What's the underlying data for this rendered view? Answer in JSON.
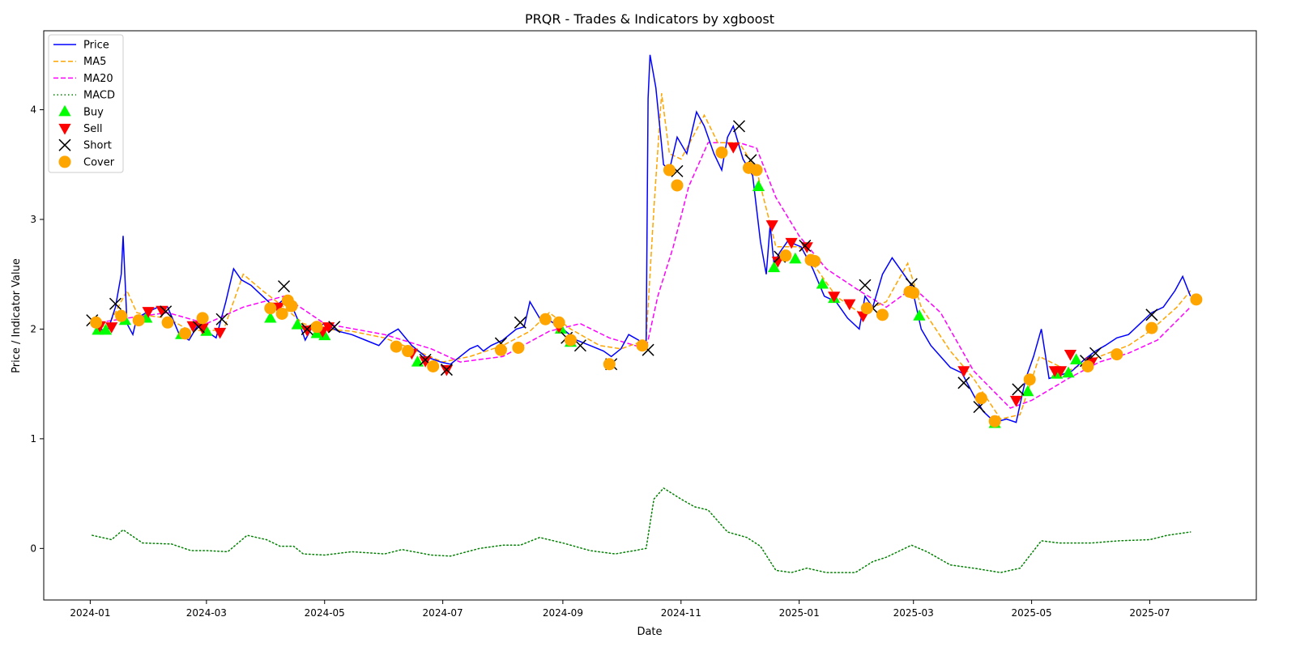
{
  "chart_data": {
    "type": "line",
    "title": "PRQR - Trades & Indicators by xgboost",
    "xlabel": "Date",
    "ylabel": "Price / Indicator Value",
    "xlim": [
      "2023-12-08",
      "2025-08-25"
    ],
    "ylim": [
      -0.47,
      4.72
    ],
    "grid": false,
    "legend_position": "top-left",
    "x_ticks": [
      "2024-01",
      "2024-03",
      "2024-05",
      "2024-07",
      "2024-09",
      "2024-11",
      "2025-01",
      "2025-03",
      "2025-05",
      "2025-07"
    ],
    "y_ticks": [
      0,
      1,
      2,
      3,
      4
    ],
    "colors": {
      "price": "#0000ff",
      "ma5": "#ffa500",
      "ma20": "#ff00ff",
      "macd": "#008000",
      "buy": "#00ff00",
      "sell": "#ff0000",
      "short": "#000000",
      "cover": "#ffa500"
    },
    "series": [
      {
        "name": "Price",
        "style": "solid",
        "color": "#0000ff",
        "x": [
          "2024-01-02",
          "2024-01-06",
          "2024-01-10",
          "2024-01-14",
          "2024-01-17",
          "2024-01-18",
          "2024-01-20",
          "2024-01-23",
          "2024-01-25",
          "2024-01-30",
          "2024-02-05",
          "2024-02-10",
          "2024-02-16",
          "2024-02-21",
          "2024-02-26",
          "2024-03-01",
          "2024-03-06",
          "2024-03-11",
          "2024-03-15",
          "2024-03-19",
          "2024-03-24",
          "2024-03-30",
          "2024-04-05",
          "2024-04-12",
          "2024-04-18",
          "2024-04-21",
          "2024-04-24",
          "2024-05-01",
          "2024-05-08",
          "2024-05-15",
          "2024-05-22",
          "2024-05-29",
          "2024-06-03",
          "2024-06-08",
          "2024-06-15",
          "2024-06-22",
          "2024-06-30",
          "2024-07-05",
          "2024-07-10",
          "2024-07-15",
          "2024-07-19",
          "2024-07-22",
          "2024-07-26",
          "2024-08-01",
          "2024-08-08",
          "2024-08-12",
          "2024-08-15",
          "2024-08-20",
          "2024-08-25",
          "2024-09-01",
          "2024-09-08",
          "2024-09-15",
          "2024-09-22",
          "2024-09-26",
          "2024-10-01",
          "2024-10-05",
          "2024-10-10",
          "2024-10-14",
          "2024-10-15",
          "2024-10-16",
          "2024-10-19",
          "2024-10-23",
          "2024-10-26",
          "2024-10-30",
          "2024-11-04",
          "2024-11-09",
          "2024-11-13",
          "2024-11-18",
          "2024-11-22",
          "2024-11-25",
          "2024-11-28",
          "2024-12-03",
          "2024-12-08",
          "2024-12-12",
          "2024-12-15",
          "2024-12-17",
          "2024-12-19",
          "2024-12-22",
          "2024-12-26",
          "2025-01-02",
          "2025-01-08",
          "2025-01-14",
          "2025-01-20",
          "2025-01-26",
          "2025-02-01",
          "2025-02-04",
          "2025-02-08",
          "2025-02-13",
          "2025-02-18",
          "2025-02-22",
          "2025-02-28",
          "2025-03-05",
          "2025-03-10",
          "2025-03-15",
          "2025-03-20",
          "2025-03-26",
          "2025-04-01",
          "2025-04-06",
          "2025-04-12",
          "2025-04-18",
          "2025-04-23",
          "2025-04-28",
          "2025-05-02",
          "2025-05-06",
          "2025-05-10",
          "2025-05-16",
          "2025-05-22",
          "2025-05-28",
          "2025-06-03",
          "2025-06-08",
          "2025-06-14",
          "2025-06-20",
          "2025-06-26",
          "2025-07-02",
          "2025-07-08",
          "2025-07-14",
          "2025-07-18",
          "2025-07-22"
        ],
        "values": [
          2.05,
          2.0,
          1.98,
          2.2,
          2.5,
          2.85,
          2.05,
          1.95,
          2.1,
          2.15,
          2.2,
          2.2,
          1.95,
          1.9,
          2.05,
          1.98,
          1.92,
          2.25,
          2.55,
          2.45,
          2.4,
          2.3,
          2.2,
          2.3,
          2.05,
          1.9,
          2.0,
          2.05,
          1.98,
          1.95,
          1.9,
          1.85,
          1.95,
          2.0,
          1.85,
          1.75,
          1.7,
          1.68,
          1.75,
          1.82,
          1.85,
          1.8,
          1.85,
          1.9,
          2.0,
          2.02,
          2.25,
          2.1,
          2.08,
          2.0,
          1.9,
          1.85,
          1.8,
          1.75,
          1.82,
          1.95,
          1.9,
          1.85,
          4.1,
          4.5,
          4.2,
          3.5,
          3.45,
          3.75,
          3.6,
          3.98,
          3.85,
          3.6,
          3.45,
          3.75,
          3.85,
          3.55,
          3.4,
          2.8,
          2.5,
          2.95,
          2.6,
          2.7,
          2.8,
          2.75,
          2.55,
          2.3,
          2.25,
          2.1,
          2.0,
          2.3,
          2.2,
          2.5,
          2.65,
          2.55,
          2.4,
          2.0,
          1.85,
          1.75,
          1.65,
          1.6,
          1.4,
          1.25,
          1.15,
          1.18,
          1.15,
          1.55,
          1.75,
          2.0,
          1.55,
          1.58,
          1.62,
          1.72,
          1.8,
          1.85,
          1.92,
          1.95,
          2.05,
          2.15,
          2.2,
          2.35,
          2.48,
          2.3
        ]
      },
      {
        "name": "MA5",
        "style": "dashed",
        "color": "#ffa500",
        "x": [
          "2024-01-02",
          "2024-01-10",
          "2024-01-20",
          "2024-01-25",
          "2024-02-01",
          "2024-02-10",
          "2024-02-20",
          "2024-03-01",
          "2024-03-10",
          "2024-03-20",
          "2024-03-30",
          "2024-04-10",
          "2024-04-20",
          "2024-05-01",
          "2024-05-15",
          "2024-06-01",
          "2024-06-15",
          "2024-07-01",
          "2024-07-15",
          "2024-08-01",
          "2024-08-15",
          "2024-08-25",
          "2024-09-05",
          "2024-09-20",
          "2024-10-01",
          "2024-10-14",
          "2024-10-18",
          "2024-10-22",
          "2024-10-26",
          "2024-11-01",
          "2024-11-13",
          "2024-11-20",
          "2024-12-01",
          "2024-12-10",
          "2024-12-20",
          "2025-01-01",
          "2025-01-10",
          "2025-01-20",
          "2025-02-01",
          "2025-02-15",
          "2025-02-26",
          "2025-03-05",
          "2025-03-20",
          "2025-04-01",
          "2025-04-15",
          "2025-04-25",
          "2025-05-05",
          "2025-05-20",
          "2025-06-05",
          "2025-06-20",
          "2025-07-01",
          "2025-07-15",
          "2025-07-22"
        ],
        "values": [
          2.05,
          2.02,
          2.35,
          2.15,
          2.12,
          2.1,
          2.0,
          1.98,
          2.0,
          2.5,
          2.35,
          2.2,
          2.05,
          2.0,
          1.98,
          1.92,
          1.82,
          1.7,
          1.75,
          1.85,
          1.98,
          2.15,
          2.0,
          1.85,
          1.82,
          1.9,
          3.1,
          4.15,
          3.6,
          3.55,
          3.95,
          3.7,
          3.7,
          3.45,
          2.75,
          2.75,
          2.55,
          2.3,
          2.15,
          2.25,
          2.6,
          2.2,
          1.8,
          1.55,
          1.18,
          1.22,
          1.75,
          1.62,
          1.75,
          1.85,
          1.98,
          2.2,
          2.35
        ]
      },
      {
        "name": "MA20",
        "style": "dashed",
        "color": "#ff00ff",
        "x": [
          "2024-01-02",
          "2024-01-20",
          "2024-02-10",
          "2024-03-01",
          "2024-03-20",
          "2024-04-10",
          "2024-05-01",
          "2024-06-01",
          "2024-06-25",
          "2024-07-10",
          "2024-08-01",
          "2024-08-25",
          "2024-09-10",
          "2024-09-25",
          "2024-10-14",
          "2024-10-20",
          "2024-10-28",
          "2024-11-05",
          "2024-11-15",
          "2024-12-01",
          "2024-12-10",
          "2024-12-20",
          "2025-01-01",
          "2025-01-15",
          "2025-02-01",
          "2025-02-15",
          "2025-03-01",
          "2025-03-15",
          "2025-04-01",
          "2025-04-20",
          "2025-05-01",
          "2025-05-20",
          "2025-06-05",
          "2025-06-20",
          "2025-07-05",
          "2025-07-22"
        ],
        "values": [
          2.05,
          2.1,
          2.15,
          2.05,
          2.2,
          2.3,
          2.05,
          1.95,
          1.82,
          1.7,
          1.75,
          1.98,
          2.05,
          1.92,
          1.82,
          2.3,
          2.75,
          3.3,
          3.7,
          3.7,
          3.65,
          3.2,
          2.85,
          2.55,
          2.35,
          2.2,
          2.38,
          2.15,
          1.62,
          1.28,
          1.35,
          1.55,
          1.7,
          1.78,
          1.9,
          2.2
        ]
      },
      {
        "name": "MACD",
        "style": "dotted",
        "color": "#008000",
        "x": [
          "2024-01-02",
          "2024-01-12",
          "2024-01-18",
          "2024-01-28",
          "2024-02-12",
          "2024-02-22",
          "2024-03-01",
          "2024-03-12",
          "2024-03-22",
          "2024-04-01",
          "2024-04-08",
          "2024-04-15",
          "2024-04-20",
          "2024-05-01",
          "2024-05-15",
          "2024-06-01",
          "2024-06-10",
          "2024-06-25",
          "2024-07-05",
          "2024-07-20",
          "2024-08-01",
          "2024-08-10",
          "2024-08-20",
          "2024-09-01",
          "2024-09-15",
          "2024-09-28",
          "2024-10-08",
          "2024-10-14",
          "2024-10-18",
          "2024-10-23",
          "2024-11-01",
          "2024-11-08",
          "2024-11-15",
          "2024-11-25",
          "2024-12-05",
          "2024-12-12",
          "2024-12-20",
          "2024-12-28",
          "2025-01-05",
          "2025-01-15",
          "2025-01-30",
          "2025-02-08",
          "2025-02-15",
          "2025-02-28",
          "2025-03-08",
          "2025-03-20",
          "2025-04-01",
          "2025-04-15",
          "2025-04-25",
          "2025-05-06",
          "2025-05-15",
          "2025-06-01",
          "2025-06-15",
          "2025-07-01",
          "2025-07-10",
          "2025-07-22"
        ],
        "values": [
          0.12,
          0.08,
          0.17,
          0.05,
          0.04,
          -0.02,
          -0.02,
          -0.03,
          0.12,
          0.08,
          0.02,
          0.02,
          -0.05,
          -0.06,
          -0.03,
          -0.05,
          -0.01,
          -0.06,
          -0.07,
          0.0,
          0.03,
          0.03,
          0.1,
          0.05,
          -0.02,
          -0.05,
          -0.02,
          0.0,
          0.45,
          0.55,
          0.45,
          0.38,
          0.35,
          0.15,
          0.1,
          0.02,
          -0.2,
          -0.22,
          -0.18,
          -0.22,
          -0.22,
          -0.12,
          -0.08,
          0.03,
          -0.03,
          -0.15,
          -0.18,
          -0.22,
          -0.18,
          0.07,
          0.05,
          0.05,
          0.07,
          0.08,
          0.12,
          0.15
        ]
      }
    ],
    "trades": {
      "Buy": {
        "x": [
          "2024-01-05",
          "2024-01-09",
          "2024-01-19",
          "2024-01-30",
          "2024-02-17",
          "2024-03-01",
          "2024-04-03",
          "2024-04-17",
          "2024-04-27",
          "2024-05-01",
          "2024-06-18",
          "2024-08-31",
          "2024-09-05",
          "2024-12-11",
          "2024-12-19",
          "2024-12-30",
          "2025-01-13",
          "2025-01-19",
          "2025-03-04",
          "2025-04-12",
          "2025-04-29",
          "2025-05-14",
          "2025-05-20",
          "2025-05-24"
        ],
        "values": [
          1.99,
          1.99,
          2.08,
          2.1,
          1.95,
          1.98,
          2.1,
          2.04,
          1.96,
          1.94,
          1.7,
          2.0,
          1.88,
          3.3,
          2.56,
          2.64,
          2.41,
          2.28,
          2.12,
          1.14,
          1.43,
          1.59,
          1.6,
          1.72
        ]
      },
      "Sell": {
        "x": [
          "2024-01-06",
          "2024-01-12",
          "2024-01-31",
          "2024-02-07",
          "2024-02-23",
          "2024-02-28",
          "2024-03-08",
          "2024-04-07",
          "2024-04-22",
          "2024-04-30",
          "2024-05-03",
          "2024-06-15",
          "2024-06-22",
          "2024-07-03",
          "2024-08-30",
          "2024-11-28",
          "2024-12-18",
          "2024-12-21",
          "2024-12-28",
          "2025-01-05",
          "2025-01-19",
          "2025-01-27",
          "2025-02-03",
          "2025-03-27",
          "2025-04-23",
          "2025-05-13",
          "2025-05-16",
          "2025-05-21",
          "2025-06-01"
        ],
        "values": [
          2.03,
          2.02,
          2.16,
          2.17,
          2.03,
          2.01,
          1.97,
          2.2,
          1.99,
          1.98,
          2.02,
          1.78,
          1.71,
          1.63,
          2.02,
          3.66,
          2.95,
          2.62,
          2.79,
          2.75,
          2.3,
          2.23,
          2.12,
          1.62,
          1.35,
          1.62,
          1.62,
          1.77,
          1.7
        ]
      },
      "Short": {
        "x": [
          "2024-01-02",
          "2024-01-14",
          "2024-02-09",
          "2024-02-26",
          "2024-03-09",
          "2024-04-10",
          "2024-04-22",
          "2024-05-06",
          "2024-06-22",
          "2024-07-03",
          "2024-07-31",
          "2024-08-10",
          "2024-09-03",
          "2024-09-10",
          "2024-09-26",
          "2024-10-15",
          "2024-10-30",
          "2024-12-01",
          "2024-12-07",
          "2024-12-22",
          "2025-01-04",
          "2025-02-04",
          "2025-02-08",
          "2025-02-28",
          "2025-03-27",
          "2025-04-04",
          "2025-04-24",
          "2025-05-29",
          "2025-06-03",
          "2025-07-02"
        ],
        "values": [
          2.08,
          2.23,
          2.16,
          2.02,
          2.09,
          2.39,
          2.0,
          2.02,
          1.72,
          1.63,
          1.87,
          2.06,
          1.92,
          1.85,
          1.68,
          1.81,
          3.44,
          3.85,
          3.54,
          2.66,
          2.76,
          2.4,
          2.19,
          2.41,
          1.51,
          1.29,
          1.45,
          1.71,
          1.78,
          2.13
        ]
      },
      "Cover": {
        "x": [
          "2024-01-04",
          "2024-01-17",
          "2024-01-26",
          "2024-02-10",
          "2024-02-19",
          "2024-02-28",
          "2024-04-03",
          "2024-04-09",
          "2024-04-12",
          "2024-04-14",
          "2024-04-27",
          "2024-06-07",
          "2024-06-13",
          "2024-06-26",
          "2024-07-31",
          "2024-08-09",
          "2024-08-23",
          "2024-08-30",
          "2024-09-05",
          "2024-09-25",
          "2024-10-12",
          "2024-10-26",
          "2024-10-30",
          "2024-11-22",
          "2024-12-06",
          "2024-12-10",
          "2024-12-25",
          "2025-01-07",
          "2025-01-09",
          "2025-02-05",
          "2025-02-13",
          "2025-02-27",
          "2025-03-01",
          "2025-04-05",
          "2025-04-12",
          "2025-04-30",
          "2025-05-30",
          "2025-06-14",
          "2025-07-02",
          "2025-07-25"
        ],
        "values": [
          2.06,
          2.12,
          2.08,
          2.06,
          1.96,
          2.1,
          2.19,
          2.14,
          2.26,
          2.21,
          2.02,
          1.84,
          1.8,
          1.66,
          1.81,
          1.83,
          2.09,
          2.06,
          1.9,
          1.68,
          1.85,
          3.45,
          3.31,
          3.61,
          3.47,
          3.45,
          2.67,
          2.63,
          2.62,
          2.19,
          2.13,
          2.34,
          2.33,
          1.37,
          1.16,
          1.54,
          1.66,
          1.77,
          2.01,
          2.27
        ]
      }
    }
  }
}
